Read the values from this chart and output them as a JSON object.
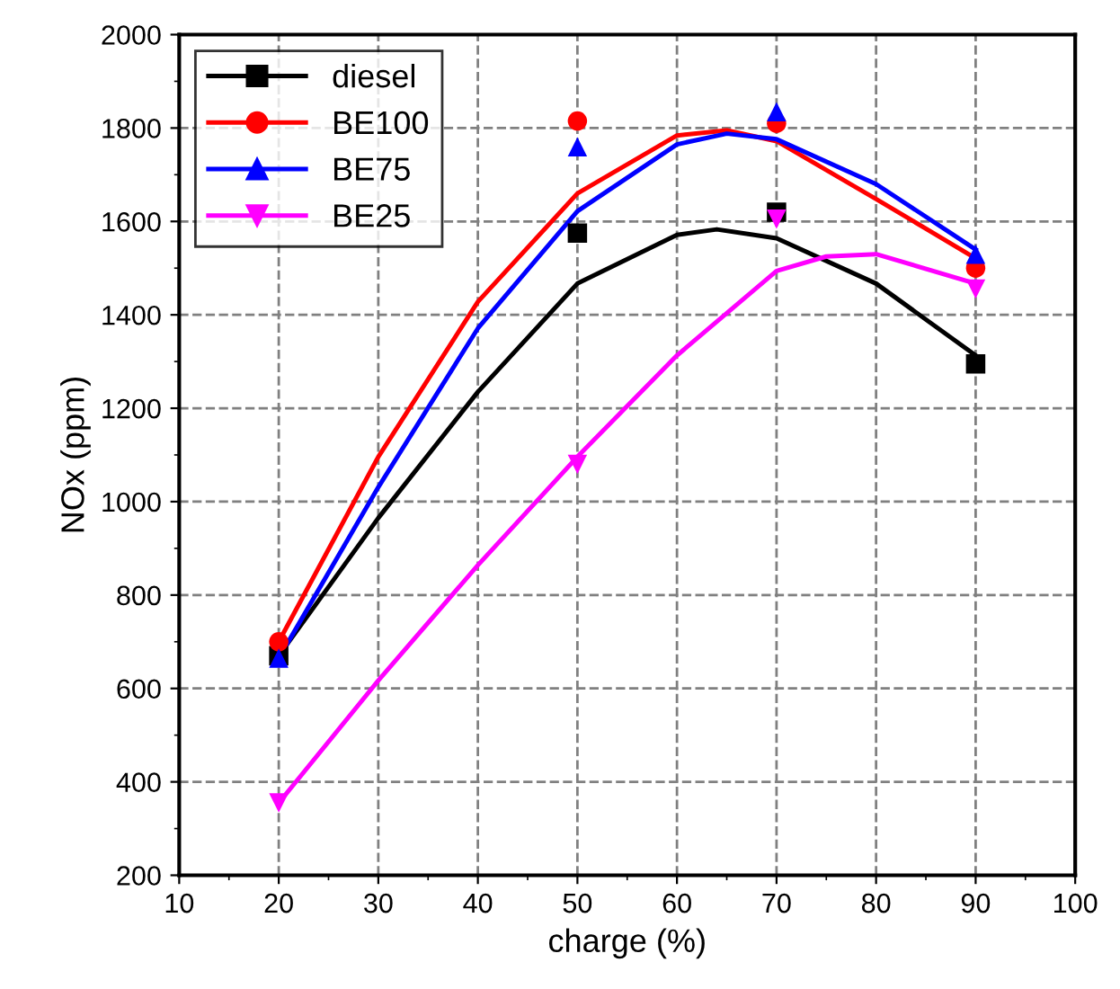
{
  "chart_data": {
    "type": "scatter",
    "xlabel": "charge (%)",
    "ylabel": "NOx (ppm)",
    "xlim": [
      10,
      100
    ],
    "ylim": [
      200,
      2000
    ],
    "xticks": [
      10,
      20,
      30,
      40,
      50,
      60,
      70,
      80,
      90,
      100
    ],
    "yticks": [
      200,
      400,
      600,
      800,
      1000,
      1200,
      1400,
      1600,
      1800,
      2000
    ],
    "grid": true,
    "legend": "top left",
    "series": [
      {
        "name": "diesel",
        "marker": "square",
        "color": "#000000",
        "x": [
          20,
          50,
          70,
          90
        ],
        "values": [
          670,
          1575,
          1620,
          1295
        ]
      },
      {
        "name": "BE100",
        "marker": "circle",
        "color": "#ff0000",
        "x": [
          20,
          50,
          70,
          90
        ],
        "values": [
          700,
          1815,
          1810,
          1500
        ]
      },
      {
        "name": "BE75",
        "marker": "triangle",
        "color": "#0000ff",
        "x": [
          20,
          50,
          70,
          90
        ],
        "values": [
          665,
          1760,
          1835,
          1530
        ]
      },
      {
        "name": "BE25",
        "marker": "triangle_down",
        "color": "#ff00ff",
        "x": [
          20,
          50,
          70,
          90
        ],
        "values": [
          355,
          1080,
          1605,
          1455
        ]
      },
      {
        "type": "line",
        "color": "#000000",
        "x": [
          20,
          30,
          40,
          50,
          60,
          64,
          70,
          80,
          90
        ],
        "values": [
          670,
          965,
          1235,
          1467,
          1571,
          1583,
          1564,
          1467,
          1313
        ]
      },
      {
        "type": "line",
        "color": "#ff0000",
        "x": [
          20,
          30,
          40,
          50,
          60,
          65,
          70,
          80,
          90
        ],
        "values": [
          700,
          1096,
          1428,
          1660,
          1784,
          1795,
          1772,
          1648,
          1521
        ]
      },
      {
        "type": "line",
        "color": "#0000ff",
        "x": [
          20,
          30,
          40,
          50,
          60,
          65,
          70,
          80,
          90
        ],
        "values": [
          665,
          1031,
          1371,
          1622,
          1765,
          1788,
          1776,
          1680,
          1540
        ]
      },
      {
        "type": "line",
        "color": "#ff00ff",
        "x": [
          20,
          30,
          40,
          50,
          60,
          70,
          75,
          80,
          90
        ],
        "values": [
          355,
          617,
          864,
          1096,
          1313,
          1494,
          1525,
          1530,
          1467
        ]
      }
    ]
  }
}
